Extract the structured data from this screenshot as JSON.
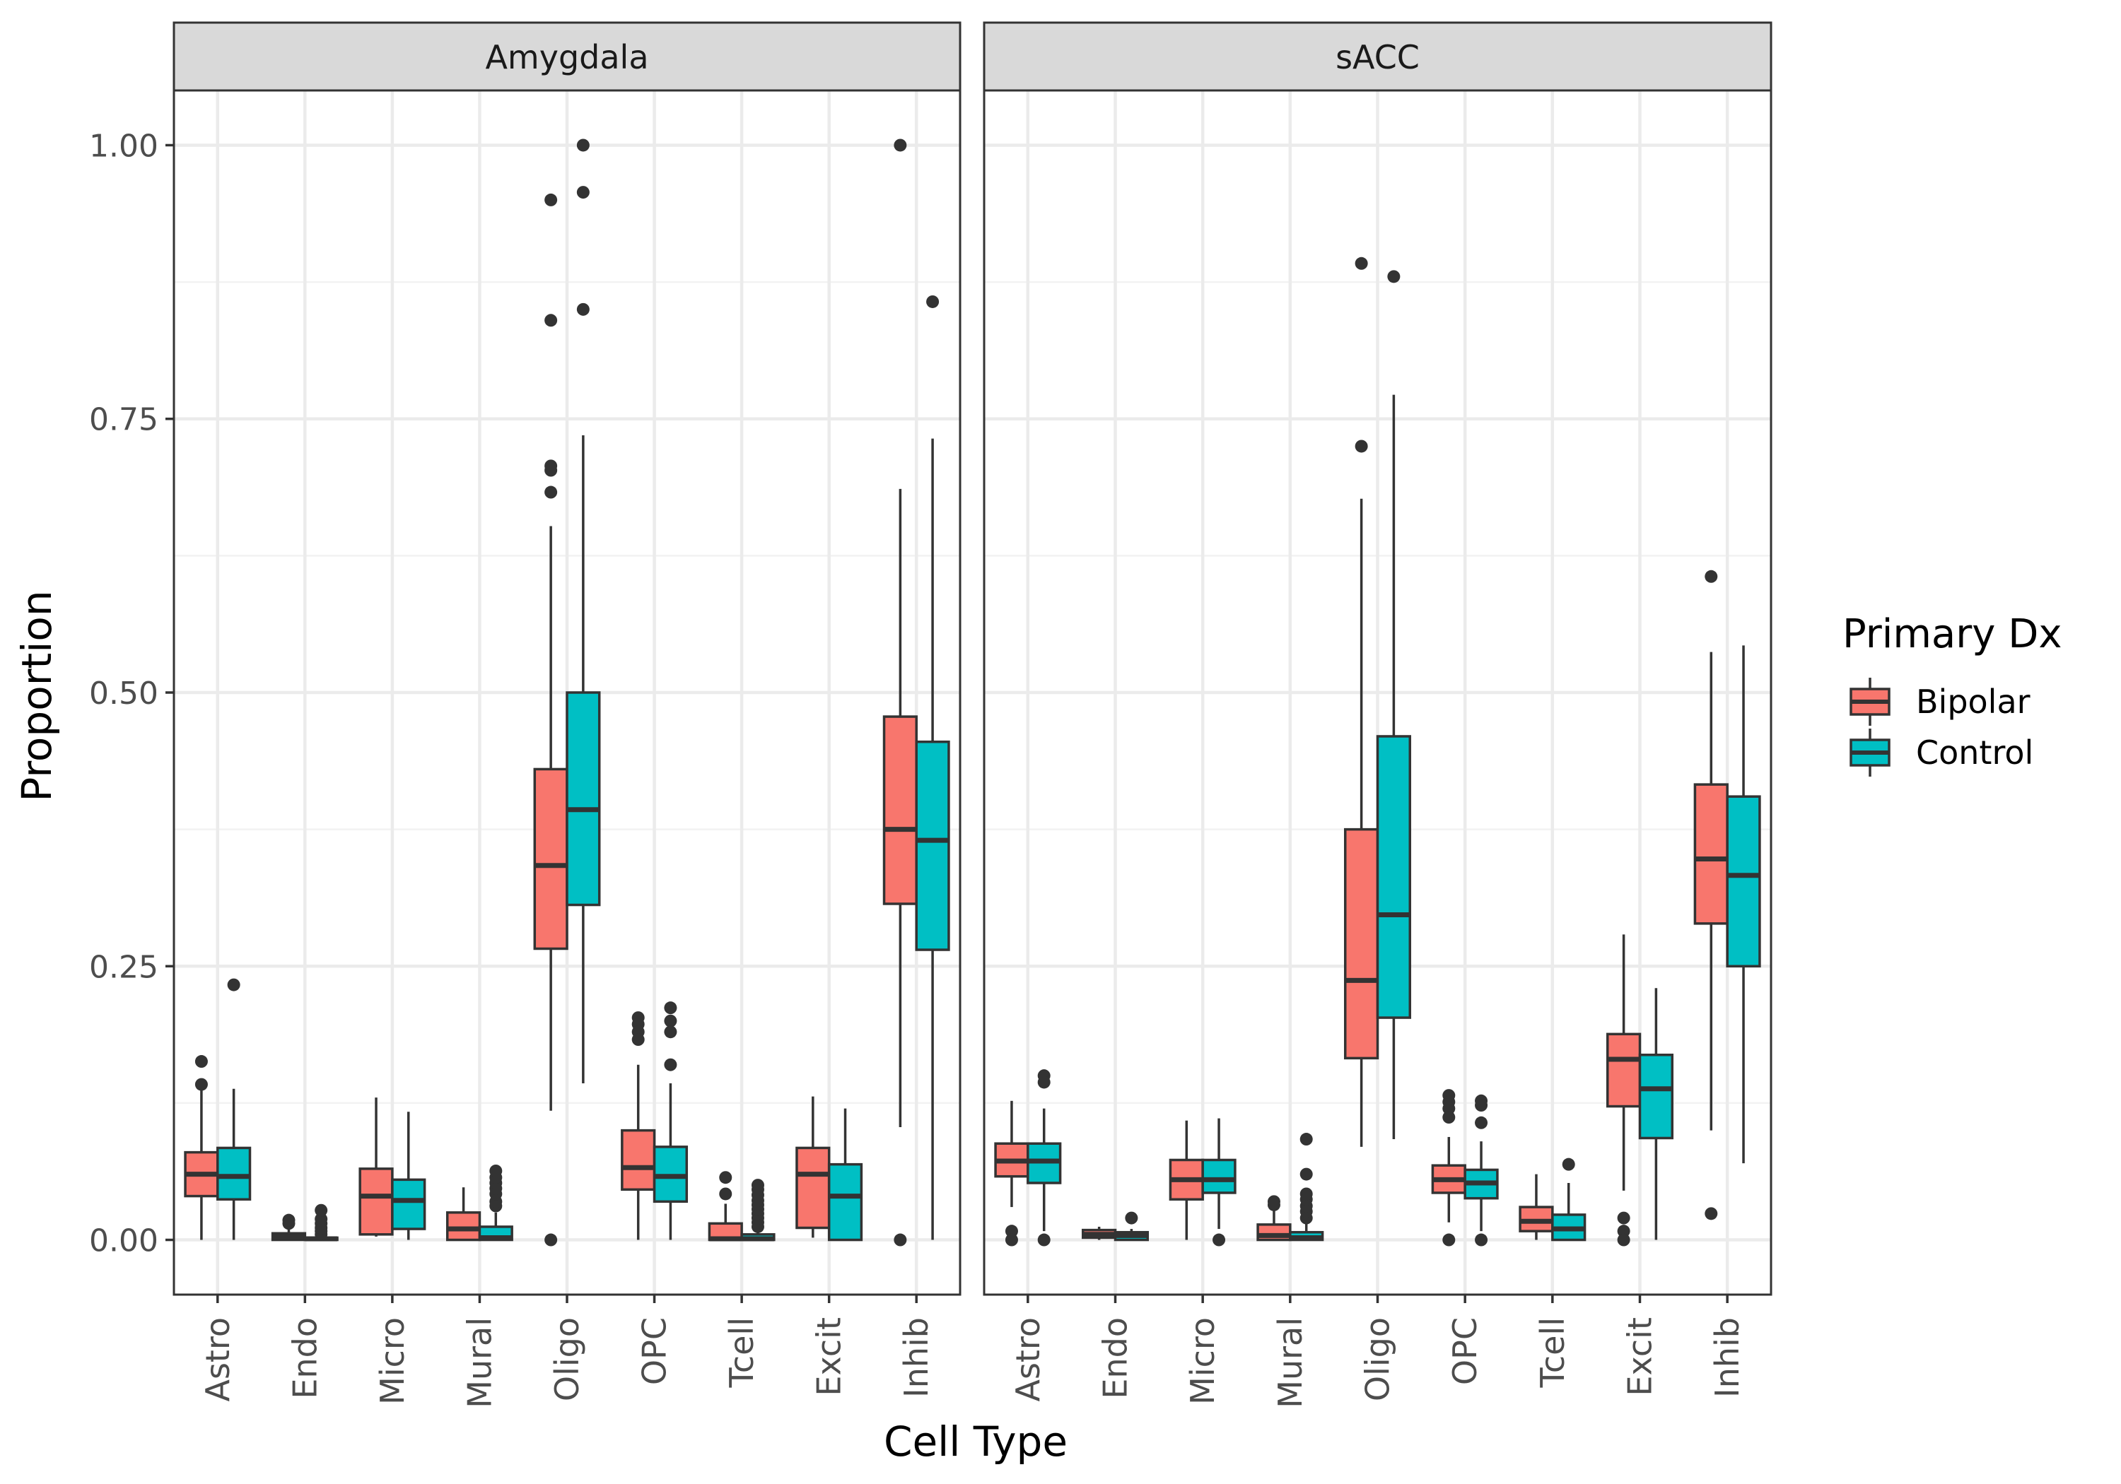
{
  "chart_data": {
    "type": "boxplot",
    "xlabel": "Cell Type",
    "ylabel": "Proportion",
    "ylim": [
      -0.05,
      1.05
    ],
    "yticks": [
      0,
      0.25,
      0.5,
      0.75,
      1.0
    ],
    "ytick_labels": [
      "0.00",
      "0.25",
      "0.50",
      "0.75",
      "1.00"
    ],
    "categories": [
      "Astro",
      "Endo",
      "Micro",
      "Mural",
      "Oligo",
      "OPC",
      "Tcell",
      "Excit",
      "Inhib"
    ],
    "grid": true,
    "legend": {
      "title": "Primary Dx",
      "placement": "right",
      "items": [
        {
          "label": "Bipolar",
          "color": "#F8766D"
        },
        {
          "label": "Control",
          "color": "#00BFC4"
        }
      ]
    },
    "panels": [
      {
        "name": "Amygdala",
        "groups": {
          "Bipolar": [
            {
              "category": "Astro",
              "whisker_low": 0.0,
              "q1": 0.04,
              "median": 0.06,
              "q3": 0.08,
              "whisker_high": 0.137,
              "outliers": [
                0.163,
                0.142
              ]
            },
            {
              "category": "Endo",
              "whisker_low": 0.0,
              "q1": 0.0,
              "median": 0.003,
              "q3": 0.006,
              "whisker_high": 0.012,
              "outliers": [
                0.015,
                0.018
              ]
            },
            {
              "category": "Micro",
              "whisker_low": 0.003,
              "q1": 0.005,
              "median": 0.04,
              "q3": 0.065,
              "whisker_high": 0.13,
              "outliers": []
            },
            {
              "category": "Mural",
              "whisker_low": 0.0,
              "q1": 0.0,
              "median": 0.01,
              "q3": 0.025,
              "whisker_high": 0.048,
              "outliers": []
            },
            {
              "category": "Oligo",
              "whisker_low": 0.118,
              "q1": 0.266,
              "median": 0.342,
              "q3": 0.43,
              "whisker_high": 0.652,
              "outliers": [
                0.95,
                0.84,
                0.707,
                0.703,
                0.683,
                0.0
              ]
            },
            {
              "category": "OPC",
              "whisker_low": 0.0,
              "q1": 0.046,
              "median": 0.066,
              "q3": 0.1,
              "whisker_high": 0.16,
              "outliers": [
                0.203,
                0.197,
                0.19,
                0.183
              ]
            },
            {
              "category": "Tcell",
              "whisker_low": 0.0,
              "q1": 0.0,
              "median": 0.001,
              "q3": 0.015,
              "whisker_high": 0.033,
              "outliers": [
                0.057,
                0.042
              ]
            },
            {
              "category": "Excit",
              "whisker_low": 0.002,
              "q1": 0.011,
              "median": 0.06,
              "q3": 0.084,
              "whisker_high": 0.131,
              "outliers": []
            },
            {
              "category": "Inhib",
              "whisker_low": 0.103,
              "q1": 0.307,
              "median": 0.375,
              "q3": 0.478,
              "whisker_high": 0.686,
              "outliers": [
                1.0,
                0.0
              ]
            }
          ],
          "Control": [
            {
              "category": "Astro",
              "whisker_low": 0.0,
              "q1": 0.037,
              "median": 0.058,
              "q3": 0.084,
              "whisker_high": 0.138,
              "outliers": [
                0.233
              ]
            },
            {
              "category": "Endo",
              "whisker_low": 0.0,
              "q1": 0.0,
              "median": 0.001,
              "q3": 0.002,
              "whisker_high": 0.003,
              "outliers": [
                0.005,
                0.008,
                0.011,
                0.015,
                0.019,
                0.027
              ]
            },
            {
              "category": "Micro",
              "whisker_low": 0.0,
              "q1": 0.01,
              "median": 0.036,
              "q3": 0.055,
              "whisker_high": 0.117,
              "outliers": []
            },
            {
              "category": "Mural",
              "whisker_low": 0.0,
              "q1": 0.0,
              "median": 0.002,
              "q3": 0.012,
              "whisker_high": 0.025,
              "outliers": [
                0.031,
                0.035,
                0.042,
                0.047,
                0.052,
                0.057,
                0.063
              ]
            },
            {
              "category": "Oligo",
              "whisker_low": 0.143,
              "q1": 0.306,
              "median": 0.393,
              "q3": 0.5,
              "whisker_high": 0.735,
              "outliers": [
                1.0,
                0.957,
                0.85
              ]
            },
            {
              "category": "OPC",
              "whisker_low": 0.0,
              "q1": 0.035,
              "median": 0.058,
              "q3": 0.085,
              "whisker_high": 0.143,
              "outliers": [
                0.212,
                0.2,
                0.19,
                0.16
              ]
            },
            {
              "category": "Tcell",
              "whisker_low": 0.0,
              "q1": 0.0,
              "median": 0.001,
              "q3": 0.005,
              "whisker_high": 0.01,
              "outliers": [
                0.012,
                0.016,
                0.02,
                0.024,
                0.028,
                0.032,
                0.036,
                0.041,
                0.046,
                0.05
              ]
            },
            {
              "category": "Excit",
              "whisker_low": 0.0,
              "q1": 0.0,
              "median": 0.04,
              "q3": 0.069,
              "whisker_high": 0.12,
              "outliers": []
            },
            {
              "category": "Inhib",
              "whisker_low": 0.0,
              "q1": 0.265,
              "median": 0.365,
              "q3": 0.455,
              "whisker_high": 0.732,
              "outliers": [
                0.857
              ]
            }
          ]
        }
      },
      {
        "name": "sACC",
        "groups": {
          "Bipolar": [
            {
              "category": "Astro",
              "whisker_low": 0.03,
              "q1": 0.058,
              "median": 0.072,
              "q3": 0.088,
              "whisker_high": 0.127,
              "outliers": [
                0.008,
                0.0
              ]
            },
            {
              "category": "Endo",
              "whisker_low": 0.0,
              "q1": 0.002,
              "median": 0.005,
              "q3": 0.009,
              "whisker_high": 0.012,
              "outliers": []
            },
            {
              "category": "Micro",
              "whisker_low": 0.0,
              "q1": 0.037,
              "median": 0.055,
              "q3": 0.073,
              "whisker_high": 0.109,
              "outliers": []
            },
            {
              "category": "Mural",
              "whisker_low": 0.0,
              "q1": 0.0,
              "median": 0.004,
              "q3": 0.014,
              "whisker_high": 0.028,
              "outliers": [
                0.035,
                0.032
              ]
            },
            {
              "category": "Oligo",
              "whisker_low": 0.085,
              "q1": 0.166,
              "median": 0.237,
              "q3": 0.375,
              "whisker_high": 0.677,
              "outliers": [
                0.892,
                0.725
              ]
            },
            {
              "category": "OPC",
              "whisker_low": 0.016,
              "q1": 0.043,
              "median": 0.055,
              "q3": 0.068,
              "whisker_high": 0.094,
              "outliers": [
                0.132,
                0.126,
                0.12,
                0.112,
                0.0
              ]
            },
            {
              "category": "Tcell",
              "whisker_low": 0.0,
              "q1": 0.008,
              "median": 0.017,
              "q3": 0.03,
              "whisker_high": 0.06,
              "outliers": []
            },
            {
              "category": "Excit",
              "whisker_low": 0.045,
              "q1": 0.122,
              "median": 0.165,
              "q3": 0.188,
              "whisker_high": 0.279,
              "outliers": [
                0.02,
                0.008,
                0.0
              ]
            },
            {
              "category": "Inhib",
              "whisker_low": 0.1,
              "q1": 0.289,
              "median": 0.348,
              "q3": 0.416,
              "whisker_high": 0.537,
              "outliers": [
                0.606,
                0.024
              ]
            }
          ],
          "Control": [
            {
              "category": "Astro",
              "whisker_low": 0.008,
              "q1": 0.052,
              "median": 0.072,
              "q3": 0.088,
              "whisker_high": 0.12,
              "outliers": [
                0.15,
                0.144,
                0.0
              ]
            },
            {
              "category": "Endo",
              "whisker_low": 0.0,
              "q1": 0.0,
              "median": 0.004,
              "q3": 0.007,
              "whisker_high": 0.01,
              "outliers": [
                0.02
              ]
            },
            {
              "category": "Micro",
              "whisker_low": 0.01,
              "q1": 0.043,
              "median": 0.055,
              "q3": 0.073,
              "whisker_high": 0.111,
              "outliers": [
                0.0
              ]
            },
            {
              "category": "Mural",
              "whisker_low": 0.0,
              "q1": 0.0,
              "median": 0.002,
              "q3": 0.007,
              "whisker_high": 0.015,
              "outliers": [
                0.02,
                0.026,
                0.031,
                0.037,
                0.042,
                0.06,
                0.092
              ]
            },
            {
              "category": "Oligo",
              "whisker_low": 0.092,
              "q1": 0.203,
              "median": 0.297,
              "q3": 0.46,
              "whisker_high": 0.772,
              "outliers": [
                0.88
              ]
            },
            {
              "category": "OPC",
              "whisker_low": 0.008,
              "q1": 0.038,
              "median": 0.052,
              "q3": 0.064,
              "whisker_high": 0.09,
              "outliers": [
                0.127,
                0.123,
                0.107,
                0.0
              ]
            },
            {
              "category": "Tcell",
              "whisker_low": 0.0,
              "q1": 0.0,
              "median": 0.01,
              "q3": 0.023,
              "whisker_high": 0.052,
              "outliers": [
                0.069
              ]
            },
            {
              "category": "Excit",
              "whisker_low": 0.0,
              "q1": 0.093,
              "median": 0.138,
              "q3": 0.169,
              "whisker_high": 0.23,
              "outliers": []
            },
            {
              "category": "Inhib",
              "whisker_low": 0.07,
              "q1": 0.25,
              "median": 0.333,
              "q3": 0.405,
              "whisker_high": 0.543,
              "outliers": []
            }
          ]
        }
      }
    ]
  }
}
